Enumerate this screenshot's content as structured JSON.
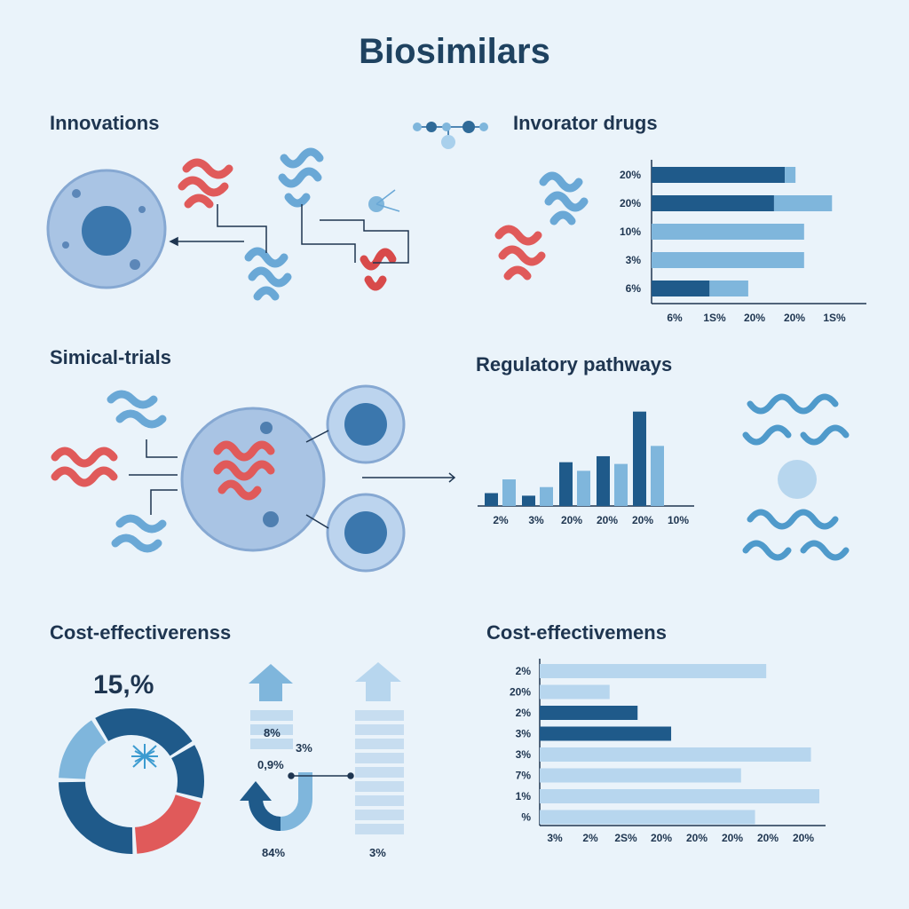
{
  "title": "Biosimilars",
  "sections": {
    "innovations": "Innovations",
    "innovator_drugs": "Invorator drugs",
    "trials": "Simical-trials",
    "regulatory": "Regulatory pathways",
    "cost_left": "Cost-effectiverenss",
    "cost_right": "Cost-effectivemens"
  },
  "cost_left": {
    "big_value": "15,%",
    "arrow_labels": [
      "8%",
      "3%",
      "0,9%",
      "84%",
      "3%"
    ]
  },
  "colors": {
    "dark": "#1f5a8a",
    "light": "#7fb6dc",
    "pale": "#b7d6ee",
    "red": "#e05a5a",
    "cell": "#a9c4e4"
  },
  "chart_data": [
    {
      "type": "bar",
      "orientation": "horizontal",
      "title": "Invorator drugs",
      "categories": [
        "20%",
        "20%",
        "10%",
        "3%",
        "6%"
      ],
      "x_tick_labels": [
        "6%",
        "1S%",
        "20%",
        "20%",
        "1S%"
      ],
      "series": [
        {
          "values": [
            0.62,
            0.57,
            0,
            0,
            0.27
          ]
        },
        {
          "values": [
            0.05,
            0.27,
            0.71,
            0.71,
            0.18
          ]
        }
      ],
      "xlim": [
        0,
        1
      ]
    },
    {
      "type": "bar",
      "orientation": "vertical",
      "title": "Regulatory pathways",
      "x_tick_labels": [
        "2%",
        "3%",
        "20%",
        "20%",
        "20%",
        "10%"
      ],
      "series": [
        {
          "values": [
            1.5,
            1.2,
            5.1,
            5.8,
            11.0,
            0
          ]
        },
        {
          "values": [
            3.1,
            2.2,
            4.1,
            4.9,
            7.0,
            0
          ]
        }
      ],
      "ylim": [
        0,
        12
      ]
    },
    {
      "type": "bar",
      "orientation": "horizontal",
      "title": "Cost-effectivemens",
      "categories": [
        "2%",
        "20%",
        "2%",
        "3%",
        "3%",
        "7%",
        "1%",
        "%"
      ],
      "x_tick_labels": [
        "3%",
        "2%",
        "2S%",
        "20%",
        "20%",
        "20%",
        "20%",
        "20%"
      ],
      "values": [
        0.81,
        0.25,
        0.35,
        0.47,
        0.97,
        0.72,
        1.0,
        0.77
      ],
      "bar_shades": [
        "pale",
        "pale",
        "dark",
        "dark",
        "pale",
        "pale",
        "pale",
        "pale"
      ],
      "xlim": [
        0,
        1
      ]
    },
    {
      "type": "pie",
      "title": "15,%",
      "slices": [
        {
          "value": 25,
          "shade": "dark"
        },
        {
          "value": 13,
          "shade": "dark"
        },
        {
          "value": 20,
          "shade": "red"
        },
        {
          "value": 26,
          "shade": "dark"
        },
        {
          "value": 16,
          "shade": "light"
        }
      ]
    }
  ]
}
